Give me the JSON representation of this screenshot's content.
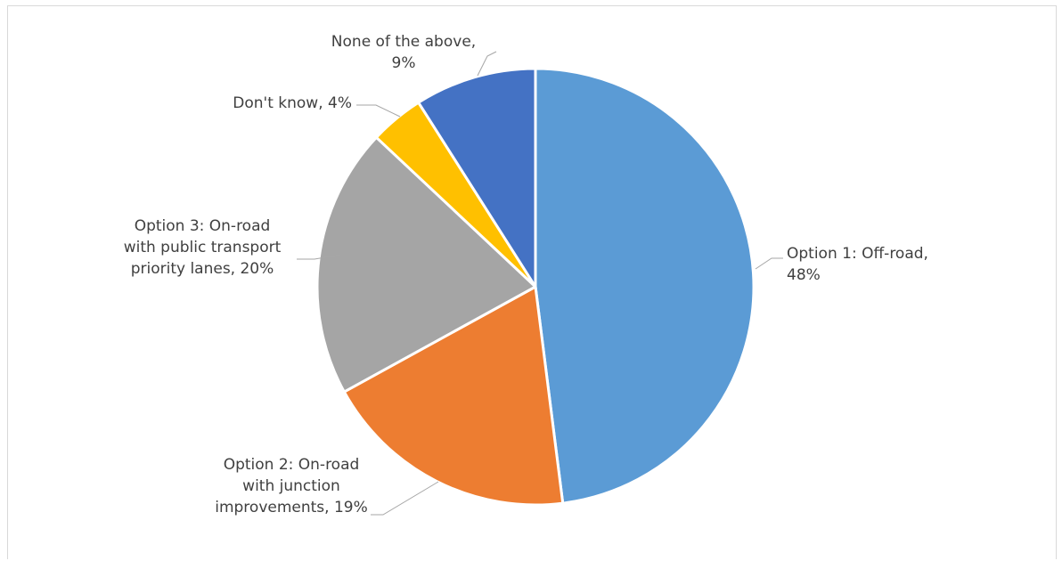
{
  "chart_data": {
    "type": "pie",
    "title": "",
    "unit": "%",
    "slices": [
      {
        "label": "Option 1: Off-road",
        "value": 48,
        "color": "#5b9bd5",
        "label_lines": [
          "Option 1: Off-road,",
          "48%"
        ]
      },
      {
        "label": "Option 2: On-road with junction improvements",
        "value": 19,
        "color": "#ed7d31",
        "label_lines": [
          "Option 2: On-road",
          "with junction",
          "improvements, 19%"
        ]
      },
      {
        "label": "Option 3: On-road with public transport priority lanes",
        "value": 20,
        "color": "#a5a5a5",
        "label_lines": [
          "Option 3: On-road",
          "with public transport",
          "priority lanes, 20%"
        ]
      },
      {
        "label": "Don't know",
        "value": 4,
        "color": "#ffc000",
        "label_lines": [
          "Don't know, 4%"
        ]
      },
      {
        "label": "None of the above",
        "value": 9,
        "color": "#4472c4",
        "label_lines": [
          "None of the above,",
          "9%"
        ]
      }
    ],
    "leader_line_color": "#a6a6a6",
    "label_color": "#404040",
    "slice_border_color": "#ffffff"
  }
}
